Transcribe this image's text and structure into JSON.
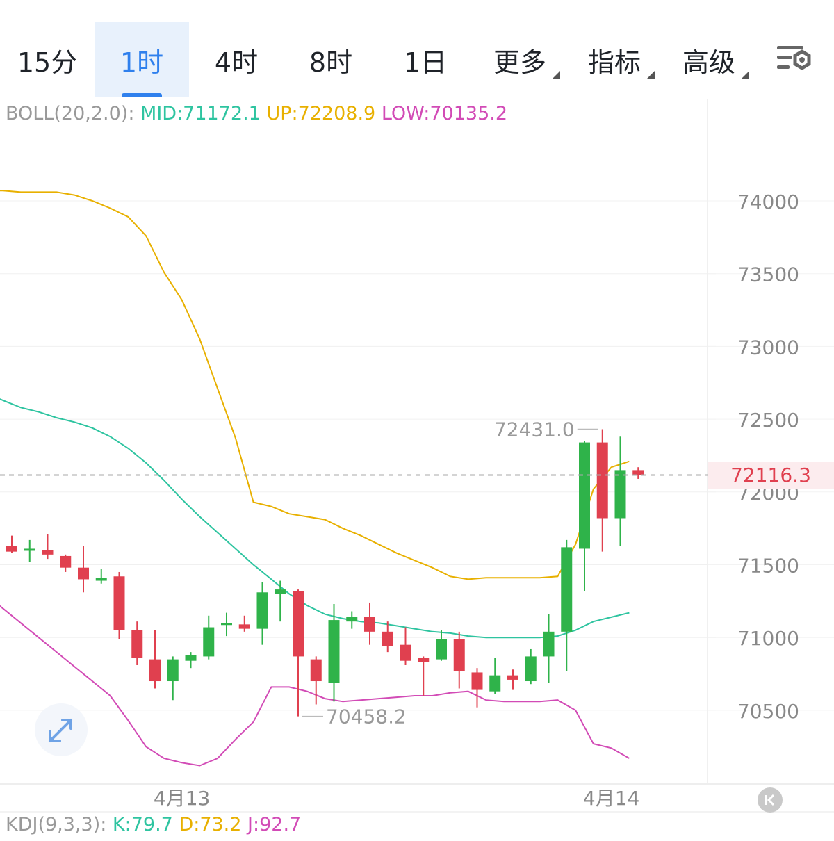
{
  "tabs": [
    {
      "label": "15分",
      "active": false,
      "dropdown": false
    },
    {
      "label": "1时",
      "active": true,
      "dropdown": false
    },
    {
      "label": "4时",
      "active": false,
      "dropdown": false
    },
    {
      "label": "8时",
      "active": false,
      "dropdown": false
    },
    {
      "label": "1日",
      "active": false,
      "dropdown": false
    },
    {
      "label": "更多",
      "active": false,
      "dropdown": true
    },
    {
      "label": "指标",
      "active": false,
      "dropdown": true
    },
    {
      "label": "高级",
      "active": false,
      "dropdown": true
    }
  ],
  "settings_icon": "chart-settings-icon",
  "boll": {
    "label": "BOLL(20,2.0):",
    "mid": "MID:71172.1",
    "up": "UP:72208.9",
    "low": "LOW:70135.2"
  },
  "kdj": {
    "label": "KDJ(9,3,3):",
    "k": "K:79.7",
    "d": "D:73.2",
    "j": "J:92.7"
  },
  "current_price": "72116.3",
  "max_label": "72431.0",
  "min_label": "70458.2",
  "colors": {
    "up": "#2fb34a",
    "down": "#e0404f",
    "mid": "#2ec4a0",
    "upper": "#e8b000",
    "lower": "#d24bb6",
    "active_tab": "#2f80ed"
  },
  "chart_data": {
    "type": "candlestick",
    "interval": "1时",
    "yticks": [
      "74000",
      "73500",
      "73000",
      "72500",
      "72000",
      "71500",
      "71000",
      "70500"
    ],
    "ylim": [
      69960,
      74560
    ],
    "xticks": [
      {
        "label": "4月13",
        "index": 9.5
      },
      {
        "label": "4月14",
        "index": 33.5
      }
    ],
    "candles": [
      {
        "o": 71630,
        "h": 71700,
        "l": 71580,
        "c": 71590
      },
      {
        "o": 71600,
        "h": 71670,
        "l": 71520,
        "c": 71610
      },
      {
        "o": 71600,
        "h": 71710,
        "l": 71540,
        "c": 71570
      },
      {
        "o": 71560,
        "h": 71570,
        "l": 71450,
        "c": 71480
      },
      {
        "o": 71480,
        "h": 71630,
        "l": 71310,
        "c": 71400
      },
      {
        "o": 71390,
        "h": 71470,
        "l": 71370,
        "c": 71410
      },
      {
        "o": 71420,
        "h": 71450,
        "l": 70990,
        "c": 71050
      },
      {
        "o": 71050,
        "h": 71110,
        "l": 70810,
        "c": 70860
      },
      {
        "o": 70850,
        "h": 71050,
        "l": 70650,
        "c": 70700
      },
      {
        "o": 70700,
        "h": 70870,
        "l": 70570,
        "c": 70850
      },
      {
        "o": 70840,
        "h": 70900,
        "l": 70790,
        "c": 70880
      },
      {
        "o": 70870,
        "h": 71150,
        "l": 70850,
        "c": 71070
      },
      {
        "o": 71100,
        "h": 71170,
        "l": 71010,
        "c": 71100
      },
      {
        "o": 71090,
        "h": 71150,
        "l": 71040,
        "c": 71060
      },
      {
        "o": 71060,
        "h": 71380,
        "l": 70950,
        "c": 71310
      },
      {
        "o": 71300,
        "h": 71390,
        "l": 71110,
        "c": 71330
      },
      {
        "o": 71320,
        "h": 71330,
        "l": 70458.2,
        "c": 70870
      },
      {
        "o": 70850,
        "h": 70870,
        "l": 70540,
        "c": 70700
      },
      {
        "o": 70690,
        "h": 71230,
        "l": 70560,
        "c": 71120
      },
      {
        "o": 71110,
        "h": 71180,
        "l": 71060,
        "c": 71140
      },
      {
        "o": 71140,
        "h": 71240,
        "l": 70950,
        "c": 71040
      },
      {
        "o": 71040,
        "h": 71110,
        "l": 70900,
        "c": 70940
      },
      {
        "o": 70950,
        "h": 71070,
        "l": 70810,
        "c": 70840
      },
      {
        "o": 70860,
        "h": 70870,
        "l": 70600,
        "c": 70830
      },
      {
        "o": 70850,
        "h": 71050,
        "l": 70840,
        "c": 70990
      },
      {
        "o": 70990,
        "h": 71040,
        "l": 70650,
        "c": 70770
      },
      {
        "o": 70760,
        "h": 70790,
        "l": 70520,
        "c": 70640
      },
      {
        "o": 70630,
        "h": 70860,
        "l": 70610,
        "c": 70740
      },
      {
        "o": 70740,
        "h": 70780,
        "l": 70640,
        "c": 70710
      },
      {
        "o": 70700,
        "h": 70920,
        "l": 70680,
        "c": 70870
      },
      {
        "o": 70870,
        "h": 71160,
        "l": 70690,
        "c": 71040
      },
      {
        "o": 71040,
        "h": 71670,
        "l": 70770,
        "c": 71620
      },
      {
        "o": 71610,
        "h": 72350,
        "l": 71320,
        "c": 72340
      },
      {
        "o": 72340,
        "h": 72431.0,
        "l": 71590,
        "c": 71820
      },
      {
        "o": 71820,
        "h": 72380,
        "l": 71630,
        "c": 72150
      },
      {
        "o": 72150,
        "h": 72170,
        "l": 72090,
        "c": 72116.3
      }
    ],
    "bands": {
      "start_index": -1.5,
      "upper": [
        74070,
        74070,
        74060,
        74060,
        74060,
        74040,
        74000,
        73950,
        73890,
        73760,
        73510,
        73320,
        73050,
        72710,
        72370,
        71930,
        71900,
        71850,
        71830,
        71810,
        71750,
        71700,
        71640,
        71580,
        71530,
        71480,
        71420,
        71400,
        71410,
        71410,
        71410,
        71410,
        71420,
        71640,
        72020,
        72170,
        72210
      ],
      "mid": [
        72680,
        72630,
        72580,
        72550,
        72510,
        72480,
        72440,
        72380,
        72300,
        72200,
        72080,
        71950,
        71830,
        71720,
        71610,
        71500,
        71400,
        71300,
        71220,
        71160,
        71130,
        71110,
        71100,
        71080,
        71060,
        71040,
        71030,
        71010,
        71000,
        71000,
        71000,
        71000,
        71010,
        71050,
        71110,
        71140,
        71170
      ],
      "lower": [
        71300,
        71200,
        71100,
        71000,
        70900,
        70800,
        70700,
        70600,
        70430,
        70250,
        70170,
        70140,
        70120,
        70170,
        70300,
        70420,
        70660,
        70660,
        70630,
        70580,
        70560,
        70570,
        70580,
        70590,
        70600,
        70600,
        70620,
        70630,
        70570,
        70560,
        70560,
        70560,
        70570,
        70500,
        70270,
        70240,
        70170
      ]
    }
  }
}
